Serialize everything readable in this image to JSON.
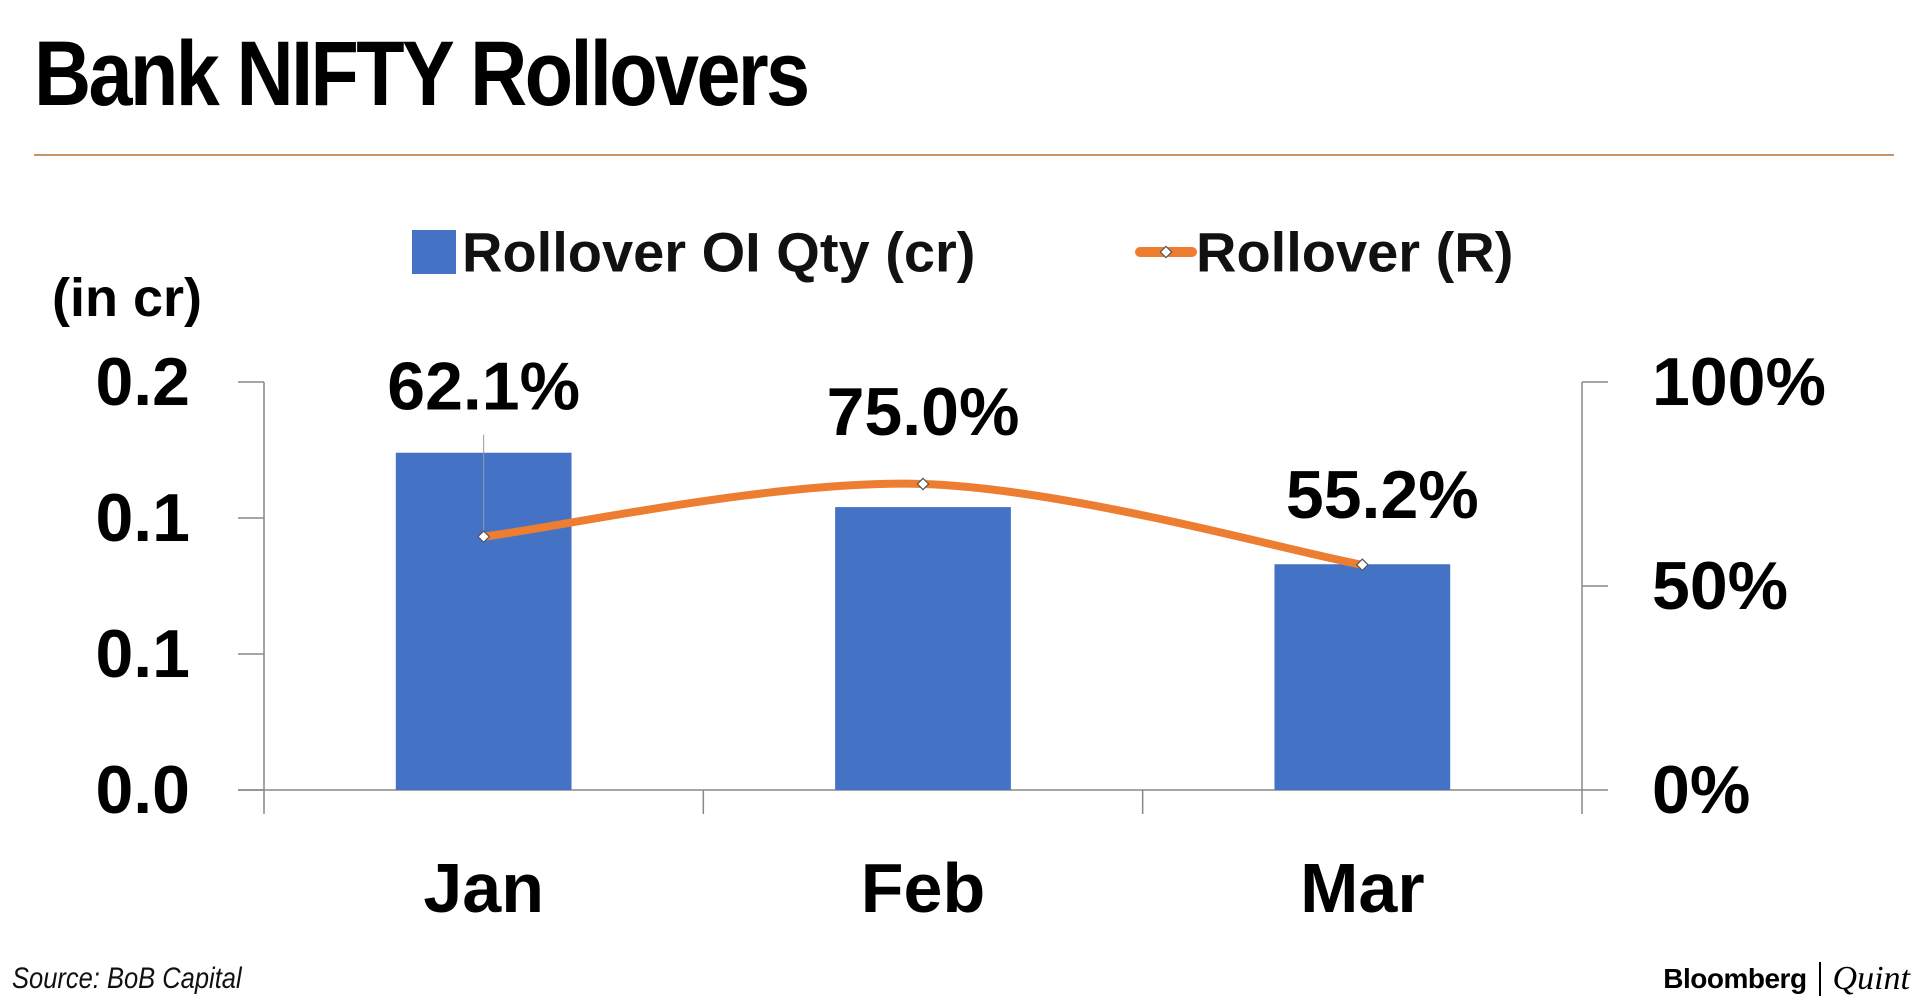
{
  "header": {
    "title": "Bank NIFTY Rollovers"
  },
  "footer": {
    "source": "Source: BoB Capital",
    "brand_left": "Bloomberg",
    "brand_right": "Quint"
  },
  "chart_data": {
    "type": "bar",
    "categories": [
      "Jan",
      "Feb",
      "Mar"
    ],
    "series": [
      {
        "name": "Rollover OI Qty (cr)",
        "type": "bar",
        "axis": "left",
        "color": "#4472c4",
        "values": [
          0.124,
          0.104,
          0.083
        ]
      },
      {
        "name": "Rollover (R)",
        "type": "line",
        "axis": "right",
        "color": "#ed7d31",
        "values": [
          62.1,
          75.0,
          55.2
        ],
        "labels": [
          "62.1%",
          "75.0%",
          "55.2%"
        ]
      }
    ],
    "y_left": {
      "label": "(in cr)",
      "range": [
        0,
        0.15
      ],
      "ticks": [
        0,
        0.05,
        0.1,
        0.15
      ],
      "tick_labels": [
        "0.0",
        "0.1",
        "0.1",
        "0.2"
      ]
    },
    "y_right": {
      "range": [
        0,
        100
      ],
      "ticks": [
        0,
        50,
        100
      ],
      "tick_labels": [
        "0%",
        "50%",
        "100%"
      ]
    },
    "legend_position": "top",
    "grid": false
  }
}
